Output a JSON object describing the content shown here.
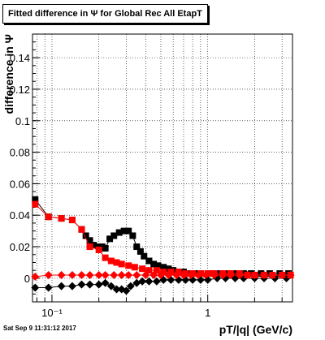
{
  "chart_data": {
    "type": "scatter",
    "title": "Fitted difference in Ψ  for Global Rec All EtapT",
    "xlabel": "pT/|q| (GeV/c)",
    "ylabel": "difference in Ψ",
    "x_scale": "log",
    "xlim": [
      0.075,
      3.5
    ],
    "ylim": [
      -0.015,
      0.155
    ],
    "x_ticks": [
      {
        "value": 0.1,
        "label": "10⁻¹"
      },
      {
        "value": 1,
        "label": "1"
      }
    ],
    "y_ticks": [
      {
        "value": 0,
        "label": "0"
      },
      {
        "value": 0.02,
        "label": "0.02"
      },
      {
        "value": 0.04,
        "label": "0.04"
      },
      {
        "value": 0.06,
        "label": "0.06"
      },
      {
        "value": 0.08,
        "label": "0.08"
      },
      {
        "value": 0.1,
        "label": "0.1"
      },
      {
        "value": 0.12,
        "label": "0.12"
      },
      {
        "value": 0.14,
        "label": "0.14"
      }
    ],
    "grid": true,
    "series": [
      {
        "color": "#000000",
        "marker": "square",
        "points": [
          [
            0.078,
            0.05
          ],
          [
            0.095,
            0.039
          ],
          [
            0.115,
            0.038
          ],
          [
            0.135,
            0.037
          ],
          [
            0.155,
            0.031
          ],
          [
            0.165,
            0.027
          ],
          [
            0.175,
            0.024
          ],
          [
            0.185,
            0.021
          ],
          [
            0.2,
            0.02
          ],
          [
            0.21,
            0.02
          ],
          [
            0.22,
            0.019
          ],
          [
            0.235,
            0.025
          ],
          [
            0.25,
            0.027
          ],
          [
            0.27,
            0.029
          ],
          [
            0.29,
            0.03
          ],
          [
            0.31,
            0.03
          ],
          [
            0.33,
            0.027
          ],
          [
            0.35,
            0.02
          ],
          [
            0.37,
            0.017
          ],
          [
            0.39,
            0.014
          ],
          [
            0.42,
            0.011
          ],
          [
            0.45,
            0.009
          ],
          [
            0.48,
            0.008
          ],
          [
            0.52,
            0.007
          ],
          [
            0.56,
            0.006
          ],
          [
            0.6,
            0.005
          ],
          [
            0.65,
            0.004
          ],
          [
            0.7,
            0.004
          ],
          [
            0.76,
            0.003
          ],
          [
            0.83,
            0.003
          ],
          [
            0.9,
            0.003
          ],
          [
            1.0,
            0.003
          ],
          [
            1.1,
            0.003
          ],
          [
            1.2,
            0.003
          ],
          [
            1.35,
            0.003
          ],
          [
            1.5,
            0.003
          ],
          [
            1.7,
            0.003
          ],
          [
            1.9,
            0.003
          ],
          [
            2.2,
            0.003
          ],
          [
            2.5,
            0.003
          ],
          [
            2.9,
            0.003
          ],
          [
            3.3,
            0.003
          ]
        ]
      },
      {
        "color": "#000000",
        "marker": "diamond",
        "points": [
          [
            0.078,
            -0.006
          ],
          [
            0.095,
            -0.006
          ],
          [
            0.115,
            -0.005
          ],
          [
            0.135,
            -0.005
          ],
          [
            0.155,
            -0.004
          ],
          [
            0.175,
            -0.004
          ],
          [
            0.2,
            -0.004
          ],
          [
            0.22,
            -0.003
          ],
          [
            0.24,
            -0.005
          ],
          [
            0.26,
            -0.007
          ],
          [
            0.28,
            -0.007
          ],
          [
            0.3,
            -0.008
          ],
          [
            0.32,
            -0.005
          ],
          [
            0.35,
            -0.003
          ],
          [
            0.38,
            -0.002
          ],
          [
            0.42,
            -0.002
          ],
          [
            0.47,
            -0.002
          ],
          [
            0.52,
            -0.001
          ],
          [
            0.58,
            -0.001
          ],
          [
            0.65,
            -0.001
          ],
          [
            0.72,
            -0.001
          ],
          [
            0.8,
            -0.001
          ],
          [
            0.9,
            -0.001
          ],
          [
            1.0,
            -0.001
          ],
          [
            1.15,
            0.0
          ],
          [
            1.3,
            0.0
          ],
          [
            1.5,
            0.0
          ],
          [
            1.7,
            0.0
          ],
          [
            2.0,
            0.0
          ],
          [
            2.3,
            0.0
          ],
          [
            2.7,
            0.0
          ],
          [
            3.2,
            0.0
          ]
        ]
      },
      {
        "color": "#ff0000",
        "marker": "square",
        "points": [
          [
            0.078,
            0.047
          ],
          [
            0.095,
            0.039
          ],
          [
            0.115,
            0.038
          ],
          [
            0.135,
            0.037
          ],
          [
            0.155,
            0.031
          ],
          [
            0.175,
            0.02
          ],
          [
            0.2,
            0.018
          ],
          [
            0.22,
            0.013
          ],
          [
            0.24,
            0.011
          ],
          [
            0.26,
            0.01
          ],
          [
            0.28,
            0.009
          ],
          [
            0.31,
            0.008
          ],
          [
            0.34,
            0.007
          ],
          [
            0.38,
            0.006
          ],
          [
            0.42,
            0.005
          ],
          [
            0.47,
            0.005
          ],
          [
            0.52,
            0.004
          ],
          [
            0.58,
            0.004
          ],
          [
            0.65,
            0.004
          ],
          [
            0.72,
            0.003
          ],
          [
            0.8,
            0.003
          ],
          [
            0.9,
            0.003
          ],
          [
            1.0,
            0.003
          ],
          [
            1.1,
            0.003
          ],
          [
            1.25,
            0.003
          ],
          [
            1.4,
            0.003
          ],
          [
            1.6,
            0.003
          ],
          [
            1.8,
            0.002
          ],
          [
            2.0,
            0.002
          ],
          [
            2.3,
            0.002
          ],
          [
            2.6,
            0.002
          ],
          [
            3.0,
            0.002
          ],
          [
            3.4,
            0.002
          ]
        ]
      },
      {
        "color": "#ff0000",
        "marker": "diamond",
        "points": [
          [
            0.078,
            0.001
          ],
          [
            0.095,
            0.002
          ],
          [
            0.115,
            0.002
          ],
          [
            0.135,
            0.002
          ],
          [
            0.155,
            0.002
          ],
          [
            0.175,
            0.002
          ],
          [
            0.2,
            0.002
          ],
          [
            0.22,
            0.002
          ],
          [
            0.25,
            0.002
          ],
          [
            0.28,
            0.002
          ],
          [
            0.31,
            0.002
          ],
          [
            0.35,
            0.002
          ],
          [
            0.4,
            0.002
          ],
          [
            0.45,
            0.002
          ],
          [
            0.5,
            0.002
          ],
          [
            0.56,
            0.002
          ],
          [
            0.63,
            0.002
          ],
          [
            0.7,
            0.002
          ],
          [
            0.78,
            0.002
          ],
          [
            0.87,
            0.002
          ],
          [
            0.97,
            0.002
          ],
          [
            1.1,
            0.002
          ],
          [
            1.25,
            0.002
          ],
          [
            1.4,
            0.002
          ],
          [
            1.6,
            0.002
          ],
          [
            1.8,
            0.002
          ],
          [
            2.0,
            0.002
          ],
          [
            2.3,
            0.002
          ],
          [
            2.6,
            0.002
          ],
          [
            3.0,
            0.002
          ],
          [
            3.4,
            0.002
          ]
        ]
      }
    ]
  },
  "footer": {
    "timestamp": "Sat Sep  9 11:31:12 2017"
  }
}
